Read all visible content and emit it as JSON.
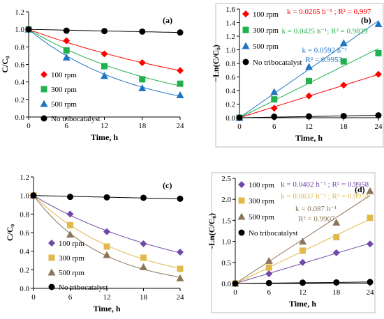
{
  "chart_data": [
    {
      "type": "scatter",
      "panel_label": "(a)",
      "xlabel": "Time, h",
      "ylabel": "C/C₀",
      "ylim": [
        0,
        1.2
      ],
      "y_ticks": [
        "0.0",
        "0.2",
        "0.4",
        "0.6",
        "0.8",
        "1.0",
        "1.2"
      ],
      "xlim": [
        0,
        24
      ],
      "x_ticks": [
        "0",
        "6",
        "12",
        "18",
        "24"
      ],
      "grid": false,
      "legend_position": "bottom-left",
      "fit": "exponential",
      "series": [
        {
          "name": "100 rpm",
          "color": "#ff0000",
          "marker": "diamond",
          "x": [
            0,
            6,
            12,
            18,
            24
          ],
          "y": [
            1.0,
            0.87,
            0.72,
            0.62,
            0.53
          ]
        },
        {
          "name": "300 rpm",
          "color": "#22b14c",
          "marker": "square",
          "x": [
            0,
            6,
            12,
            18,
            24
          ],
          "y": [
            1.0,
            0.76,
            0.58,
            0.43,
            0.38
          ]
        },
        {
          "name": "500 rpm",
          "color": "#1f75c4",
          "marker": "triangle",
          "x": [
            0,
            6,
            12,
            18,
            24
          ],
          "y": [
            1.0,
            0.68,
            0.47,
            0.33,
            0.25
          ]
        },
        {
          "name": "No tribocatalyst",
          "color": "#000000",
          "marker": "circle",
          "x": [
            0,
            6,
            12,
            18,
            24
          ],
          "y": [
            1.0,
            0.985,
            0.98,
            0.975,
            0.965
          ]
        }
      ],
      "annotations": []
    },
    {
      "type": "scatter",
      "panel_label": "(b)",
      "xlabel": "Time, h",
      "ylabel": "−Ln(C/C₀)",
      "ylim": [
        0,
        1.6
      ],
      "y_ticks": [
        "0.0",
        "0.2",
        "0.4",
        "0.6",
        "0.8",
        "1.0",
        "1.2",
        "1.4",
        "1.6"
      ],
      "xlim": [
        0,
        24
      ],
      "x_ticks": [
        "0",
        "6",
        "12",
        "18",
        "24"
      ],
      "grid": false,
      "legend_position": "top-left",
      "fit": "linear",
      "series": [
        {
          "name": "100 rpm",
          "color": "#ff0000",
          "marker": "diamond",
          "x": [
            0,
            6,
            12,
            18,
            24
          ],
          "y": [
            0.0,
            0.14,
            0.32,
            0.48,
            0.64
          ]
        },
        {
          "name": "300 rpm",
          "color": "#22b14c",
          "marker": "square",
          "x": [
            0,
            6,
            12,
            18,
            24
          ],
          "y": [
            0.0,
            0.27,
            0.54,
            0.83,
            0.95
          ]
        },
        {
          "name": "500 rpm",
          "color": "#1f75c4",
          "marker": "triangle",
          "x": [
            0,
            6,
            12,
            18,
            24
          ],
          "y": [
            0.0,
            0.38,
            0.75,
            1.1,
            1.38
          ]
        },
        {
          "name": "No tribocatalyst",
          "color": "#000000",
          "marker": "circle",
          "x": [
            0,
            6,
            12,
            18,
            24
          ],
          "y": [
            0.0,
            0.015,
            0.02,
            0.025,
            0.035
          ]
        }
      ],
      "annotations": [
        {
          "text": "k = 0.0265 h⁻¹ ; R² = 0.997",
          "color": "#ff0000",
          "x": 8.2,
          "y": 1.53
        },
        {
          "text": "k = 0.0425 h⁻¹; R² = 0.9829",
          "color": "#22b14c",
          "x": 7.3,
          "y": 1.24
        },
        {
          "text": "k = 0.0592 h⁻¹",
          "color": "#1f75c4",
          "x": 10.8,
          "y": 0.96
        },
        {
          "text": "R² = 0.9953",
          "color": "#1f75c4",
          "x": 11.4,
          "y": 0.82
        }
      ]
    },
    {
      "type": "scatter",
      "panel_label": "(c)",
      "xlabel": "Time, h",
      "ylabel": "C/C₀",
      "ylim": [
        0,
        1.2
      ],
      "y_ticks": [
        "0.0",
        "0.2",
        "0.4",
        "0.6",
        "0.8",
        "1.0",
        "1.2"
      ],
      "xlim": [
        0,
        24
      ],
      "x_ticks": [
        "0",
        "6",
        "12",
        "18",
        "24"
      ],
      "grid": false,
      "legend_position": "bottom-left",
      "fit": "exponential",
      "series": [
        {
          "name": "100 rpm",
          "color": "#7048a8",
          "marker": "diamond",
          "x": [
            0,
            6,
            12,
            18,
            24
          ],
          "y": [
            1.0,
            0.8,
            0.61,
            0.48,
            0.39
          ]
        },
        {
          "name": "300 rpm",
          "color": "#e2b84a",
          "marker": "square",
          "x": [
            0,
            6,
            12,
            18,
            24
          ],
          "y": [
            1.0,
            0.68,
            0.45,
            0.33,
            0.21
          ]
        },
        {
          "name": "500 rpm",
          "color": "#8c7558",
          "marker": "triangle",
          "x": [
            0,
            6,
            12,
            18,
            24
          ],
          "y": [
            1.0,
            0.58,
            0.36,
            0.23,
            0.11
          ]
        },
        {
          "name": "No tribocatalyst",
          "color": "#000000",
          "marker": "circle",
          "x": [
            0,
            6,
            12,
            18,
            24
          ],
          "y": [
            1.0,
            0.985,
            0.98,
            0.975,
            0.965
          ]
        }
      ],
      "annotations": []
    },
    {
      "type": "scatter",
      "panel_label": "(d)",
      "xlabel": "Time, h",
      "ylabel": "-Ln(C/C₀)",
      "ylim": [
        0,
        2.5
      ],
      "y_ticks": [
        "0.0",
        "0.5",
        "1.0",
        "1.5",
        "2.0",
        "2.5"
      ],
      "xlim": [
        0,
        24
      ],
      "x_ticks": [
        "0",
        "6",
        "12",
        "18",
        "24"
      ],
      "grid": false,
      "legend_position": "top-left",
      "fit": "linear",
      "series": [
        {
          "name": "100 rpm",
          "color": "#7048a8",
          "marker": "diamond",
          "x": [
            0,
            6,
            12,
            18,
            24
          ],
          "y": [
            0.0,
            0.23,
            0.5,
            0.73,
            0.94
          ]
        },
        {
          "name": "300 rpm",
          "color": "#e2b84a",
          "marker": "square",
          "x": [
            0,
            6,
            12,
            18,
            24
          ],
          "y": [
            0.0,
            0.38,
            0.78,
            1.1,
            1.56
          ]
        },
        {
          "name": "500 rpm",
          "color": "#8c7558",
          "marker": "triangle",
          "x": [
            0,
            6,
            12,
            18,
            24
          ],
          "y": [
            0.0,
            0.54,
            1.0,
            1.45,
            2.2
          ]
        },
        {
          "name": "No tribocatalyst",
          "color": "#000000",
          "marker": "circle",
          "x": [
            0,
            6,
            12,
            18,
            24
          ],
          "y": [
            0.0,
            0.01,
            0.02,
            0.025,
            0.035
          ]
        }
      ],
      "annotations": [
        {
          "text": "k = 0.0402 h⁻¹ ; R² = 0.9958",
          "color": "#7048a8",
          "x": 8.1,
          "y": 2.3
        },
        {
          "text": "k = 0.0637 h⁻¹ ; R² = 0.9974",
          "color": "#e2b84a",
          "x": 8.1,
          "y": 2.02
        },
        {
          "text": "k = 0.087 h⁻¹",
          "color": "#8c7558",
          "x": 10.7,
          "y": 1.72
        },
        {
          "text": "R² = 0.9907",
          "color": "#8c7558",
          "x": 11.2,
          "y": 1.48
        }
      ]
    }
  ]
}
